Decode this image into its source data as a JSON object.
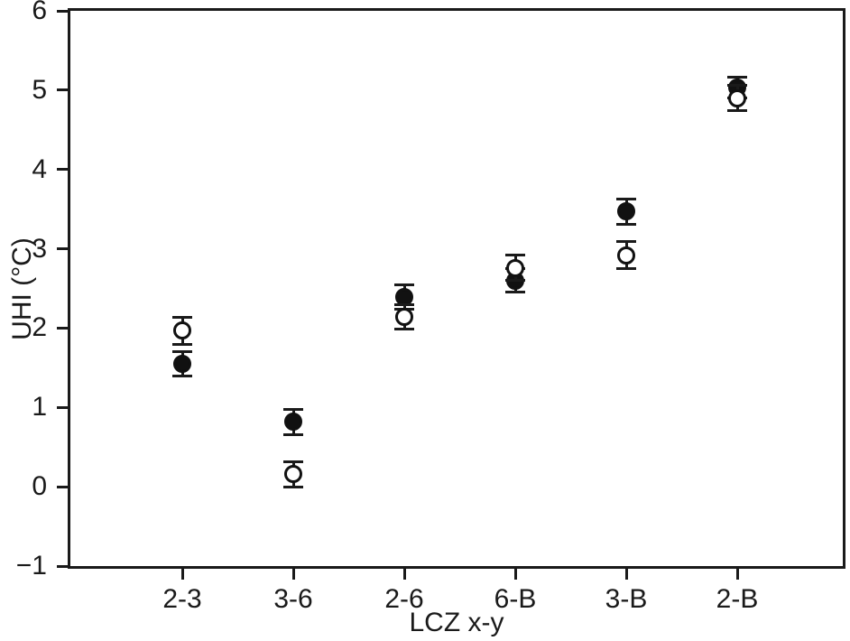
{
  "chart_data": {
    "type": "scatter",
    "title": "",
    "xlabel": "LCZ x-y",
    "ylabel": "UHI (°C)",
    "categories": [
      "2-3",
      "3-6",
      "2-6",
      "6-B",
      "3-B",
      "2-B"
    ],
    "ylim": [
      -1,
      6
    ],
    "yticks": [
      6,
      5,
      4,
      3,
      2,
      1,
      0,
      -1
    ],
    "grid": false,
    "legend": "none",
    "series": [
      {
        "name": "filled-circle-series",
        "marker": "filled-circle",
        "fill": "#111111",
        "stroke": "#111111",
        "values": [
          1.55,
          0.82,
          2.39,
          2.6,
          3.47,
          5.03
        ],
        "errors": [
          0.15,
          0.16,
          0.15,
          0.15,
          0.16,
          0.13
        ]
      },
      {
        "name": "open-circle-series",
        "marker": "open-circle",
        "fill": "#ffffff",
        "stroke": "#111111",
        "values": [
          1.97,
          0.16,
          2.14,
          2.76,
          2.92,
          4.9
        ],
        "errors": [
          0.17,
          0.16,
          0.15,
          0.16,
          0.17,
          0.16
        ]
      }
    ]
  },
  "styles": {
    "ink": "#1a1a1a",
    "background": "#ffffff"
  }
}
